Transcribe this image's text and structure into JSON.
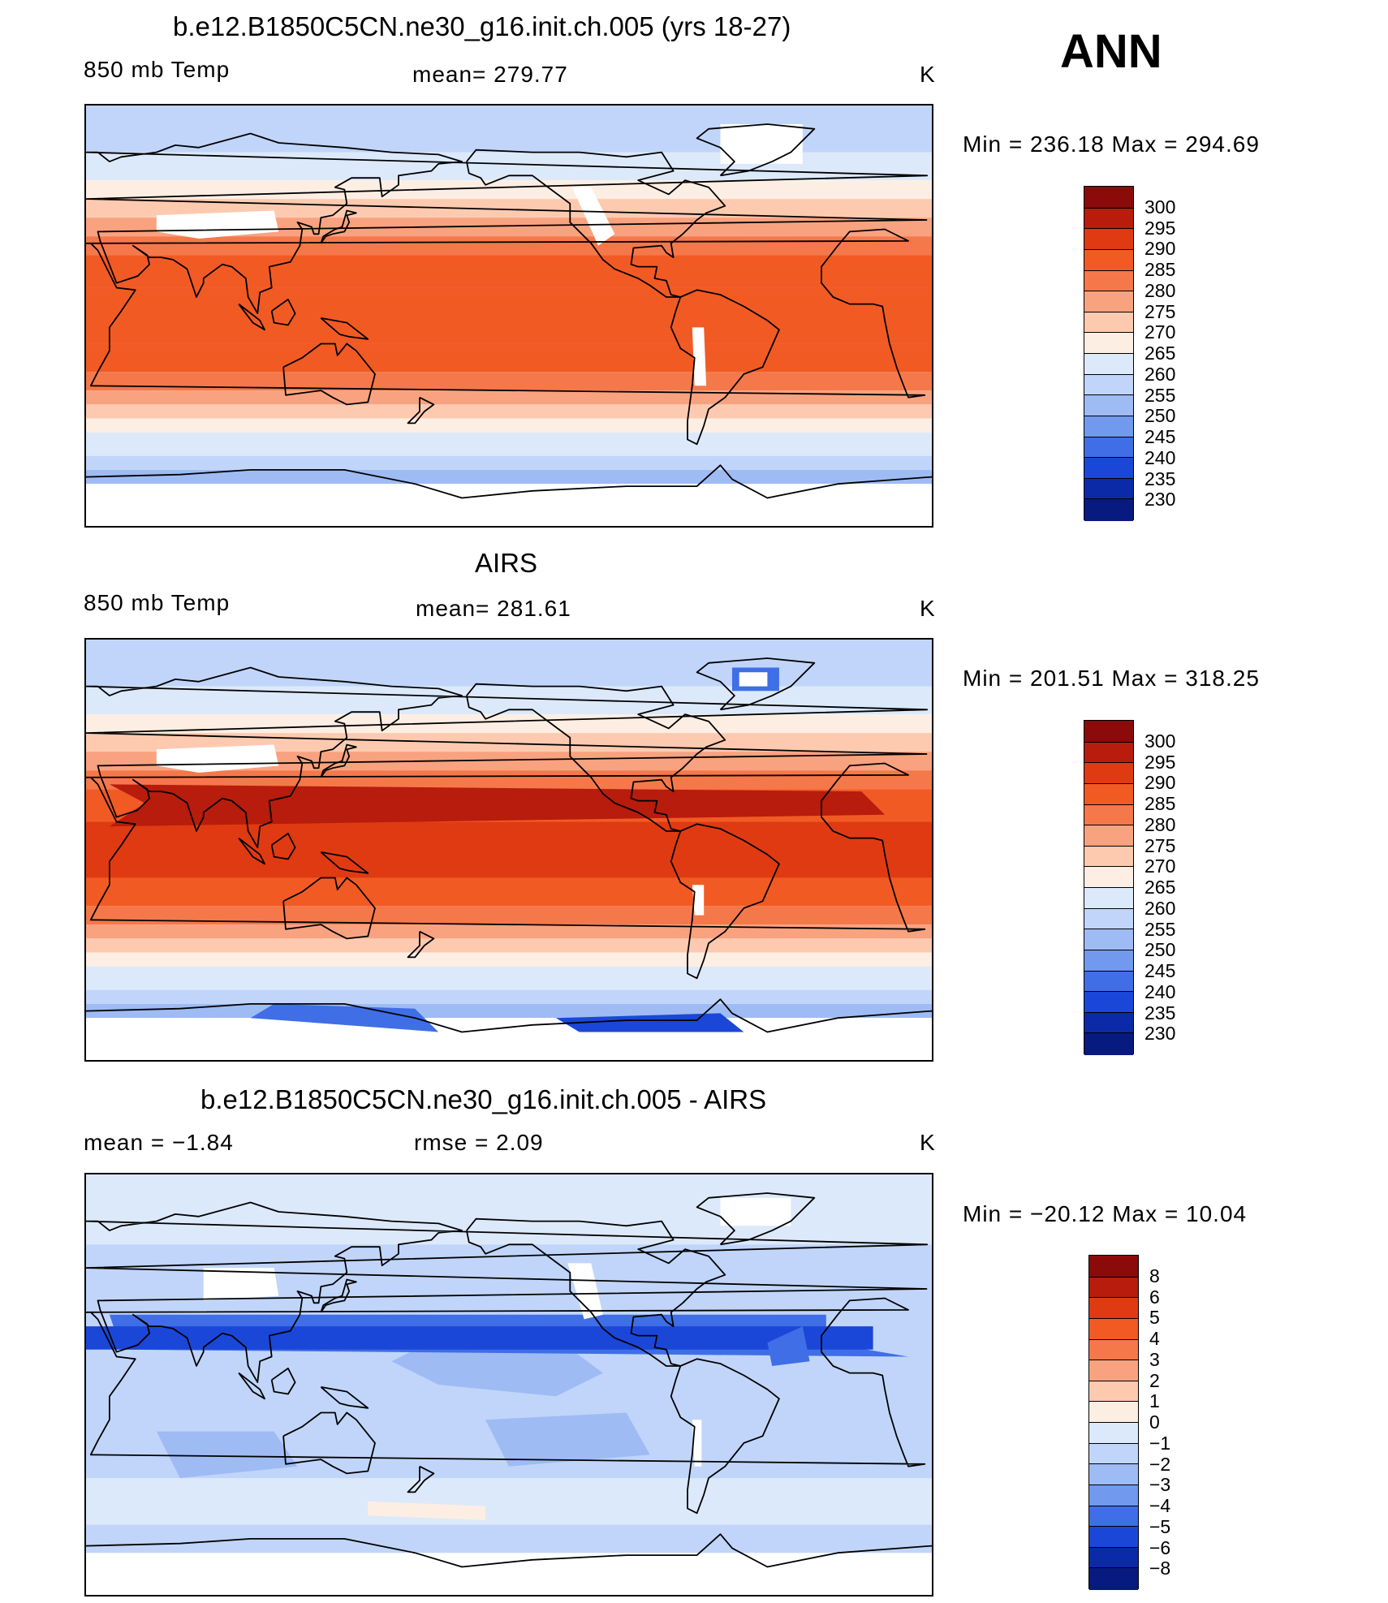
{
  "season": "ANN",
  "panels": [
    {
      "title": "b.e12.B1850C5CN.ne30_g16.init.ch.005 (yrs 18-27)",
      "left_label": "850 mb Temp",
      "center_label": "mean=  279.77",
      "units": "K",
      "minmax": "Min  =  236.18  Max  =  294.69",
      "levels": [
        "300",
        "295",
        "290",
        "285",
        "280",
        "275",
        "270",
        "265",
        "260",
        "255",
        "250",
        "245",
        "240",
        "235",
        "230"
      ],
      "colors": [
        "#8b0a0a",
        "#b71c0c",
        "#e03a12",
        "#f25a24",
        "#f5784a",
        "#f9a27f",
        "#fdcab0",
        "#fdeee3",
        "#dce9fb",
        "#c0d5f9",
        "#9ebbf4",
        "#7199ee",
        "#3f6ee6",
        "#1a47d8",
        "#0a2aa8",
        "#061a80"
      ],
      "fill_style": "model"
    },
    {
      "title": "AIRS",
      "left_label": "850 mb Temp",
      "center_label": "mean=  281.61",
      "units": "K",
      "minmax": "Min  =  201.51  Max  =  318.25",
      "levels": [
        "300",
        "295",
        "290",
        "285",
        "280",
        "275",
        "270",
        "265",
        "260",
        "255",
        "250",
        "245",
        "240",
        "235",
        "230"
      ],
      "colors": [
        "#8b0a0a",
        "#b71c0c",
        "#e03a12",
        "#f25a24",
        "#f5784a",
        "#f9a27f",
        "#fdcab0",
        "#fdeee3",
        "#dce9fb",
        "#c0d5f9",
        "#9ebbf4",
        "#7199ee",
        "#3f6ee6",
        "#1a47d8",
        "#0a2aa8",
        "#061a80"
      ],
      "fill_style": "obs"
    },
    {
      "title": "b.e12.B1850C5CN.ne30_g16.init.ch.005 - AIRS",
      "left_label": "mean =    −1.84",
      "center_label": "rmse =     2.09",
      "units": "K",
      "minmax": "Min  =  −20.12  Max  =    10.04",
      "levels": [
        "8",
        "6",
        "5",
        "4",
        "3",
        "2",
        "1",
        "0",
        "−1",
        "−2",
        "−3",
        "−4",
        "−5",
        "−6",
        "−8"
      ],
      "colors": [
        "#8b0a0a",
        "#b71c0c",
        "#e03a12",
        "#f25a24",
        "#f5784a",
        "#f9a27f",
        "#fdcab0",
        "#fdeee3",
        "#dce9fb",
        "#c0d5f9",
        "#9ebbf4",
        "#7199ee",
        "#3f6ee6",
        "#1a47d8",
        "#0a2aa8",
        "#061a80"
      ],
      "fill_style": "diff"
    }
  ]
}
